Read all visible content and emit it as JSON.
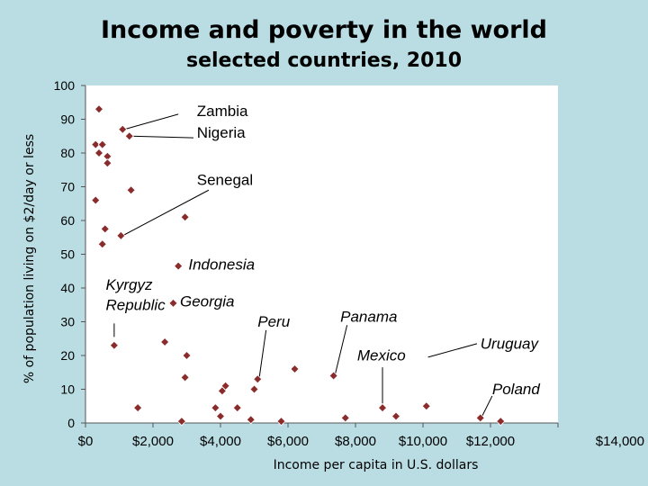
{
  "chart_data": {
    "type": "scatter",
    "title": "Income and poverty in the world",
    "subtitle": "selected countries, 2010",
    "xlabel": "Income per capita in U.S. dollars",
    "ylabel": "% of population living on $2/day or less",
    "xlim": [
      0,
      14000
    ],
    "ylim": [
      0,
      100
    ],
    "x_ticks": [
      0,
      2000,
      4000,
      6000,
      8000,
      10000,
      12000,
      14000
    ],
    "x_tick_labels": [
      "$0",
      "$2,000",
      "$4,000",
      "$6,000",
      "$8,000",
      "$10,000",
      "$12,000",
      "$14,000"
    ],
    "y_ticks": [
      0,
      10,
      20,
      30,
      40,
      50,
      60,
      70,
      80,
      90,
      100
    ],
    "y_tick_labels": [
      "0",
      "10",
      "20",
      "30",
      "40",
      "50",
      "60",
      "70",
      "80",
      "90",
      "100"
    ],
    "marker_color": "#8b2c2c",
    "background_color": "#b9dde3",
    "plot_background": "#ffffff",
    "points": [
      {
        "x": 400,
        "y": 93
      },
      {
        "x": 1100,
        "y": 87
      },
      {
        "x": 1300,
        "y": 85
      },
      {
        "x": 300,
        "y": 82.5
      },
      {
        "x": 500,
        "y": 82.5
      },
      {
        "x": 400,
        "y": 80
      },
      {
        "x": 650,
        "y": 79
      },
      {
        "x": 650,
        "y": 77
      },
      {
        "x": 1350,
        "y": 69
      },
      {
        "x": 300,
        "y": 66
      },
      {
        "x": 2950,
        "y": 61
      },
      {
        "x": 580,
        "y": 57.5
      },
      {
        "x": 1050,
        "y": 55.5
      },
      {
        "x": 500,
        "y": 53
      },
      {
        "x": 2750,
        "y": 46.5
      },
      {
        "x": 2600,
        "y": 35.5
      },
      {
        "x": 850,
        "y": 23
      },
      {
        "x": 2350,
        "y": 24
      },
      {
        "x": 3000,
        "y": 20
      },
      {
        "x": 2950,
        "y": 13.5
      },
      {
        "x": 6200,
        "y": 16
      },
      {
        "x": 7350,
        "y": 14
      },
      {
        "x": 1550,
        "y": 4.5
      },
      {
        "x": 2850,
        "y": 0.5
      },
      {
        "x": 3850,
        "y": 4.5
      },
      {
        "x": 4050,
        "y": 9.5
      },
      {
        "x": 4150,
        "y": 11
      },
      {
        "x": 4000,
        "y": 2
      },
      {
        "x": 4500,
        "y": 4.5
      },
      {
        "x": 4900,
        "y": 1
      },
      {
        "x": 5000,
        "y": 10
      },
      {
        "x": 5100,
        "y": 13
      },
      {
        "x": 5800,
        "y": 0.5
      },
      {
        "x": 7700,
        "y": 1.5
      },
      {
        "x": 8800,
        "y": 4.5
      },
      {
        "x": 9200,
        "y": 2
      },
      {
        "x": 10100,
        "y": 5
      },
      {
        "x": 11700,
        "y": 1.5
      },
      {
        "x": 12300,
        "y": 0.5
      }
    ],
    "annotations": [
      {
        "text": "Zambia",
        "italic": false,
        "x": 3300,
        "y": 91,
        "anchor": "start",
        "leader": [
          [
            2750,
            91.5
          ],
          [
            1150,
            87
          ]
        ]
      },
      {
        "text": "Nigeria",
        "italic": false,
        "x": 3300,
        "y": 84.5,
        "anchor": "start",
        "leader": [
          [
            3200,
            84.5
          ],
          [
            1350,
            85
          ]
        ]
      },
      {
        "text": "Senegal",
        "italic": false,
        "x": 3300,
        "y": 70.5,
        "anchor": "start",
        "leader": [
          [
            3650,
            69
          ],
          [
            1100,
            55.5
          ]
        ]
      },
      {
        "text": "Indonesia",
        "italic": true,
        "x": 3050,
        "y": 45.5,
        "anchor": "start",
        "leader": null
      },
      {
        "text": "Georgia",
        "italic": true,
        "x": 2800,
        "y": 34.5,
        "anchor": "start",
        "leader": null
      },
      {
        "text": "Kyrgyz",
        "italic": true,
        "x": 600,
        "y": 39.5,
        "anchor": "start",
        "leader": [
          [
            850,
            29.5
          ],
          [
            850,
            25.5
          ]
        ]
      },
      {
        "text": "Republic",
        "italic": true,
        "x": 600,
        "y": 33.5,
        "anchor": "start",
        "leader": null
      },
      {
        "text": "Peru",
        "italic": true,
        "x": 5100,
        "y": 28.5,
        "anchor": "start",
        "leader": [
          [
            5350,
            27.5
          ],
          [
            5150,
            13.5
          ]
        ]
      },
      {
        "text": "Panama",
        "italic": true,
        "x": 7550,
        "y": 30,
        "anchor": "start",
        "leader": [
          [
            7750,
            29
          ],
          [
            7400,
            14.5
          ]
        ]
      },
      {
        "text": "Mexico",
        "italic": true,
        "x": 8050,
        "y": 18.5,
        "anchor": "start",
        "leader": [
          [
            8800,
            16.5
          ],
          [
            8800,
            5
          ]
        ]
      },
      {
        "text": "Uruguay",
        "italic": true,
        "x": 11700,
        "y": 22,
        "anchor": "start",
        "leader": [
          [
            11600,
            23.5
          ],
          [
            10150,
            19.5
          ]
        ]
      },
      {
        "text": "Poland",
        "italic": true,
        "x": 12050,
        "y": 8.5,
        "anchor": "start",
        "leader": [
          [
            12050,
            8
          ],
          [
            11750,
            2
          ]
        ]
      }
    ]
  }
}
